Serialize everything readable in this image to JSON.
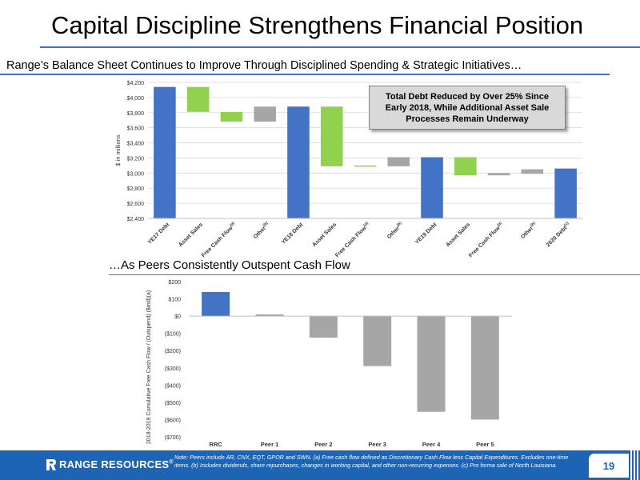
{
  "header": {
    "title": "Capital Discipline Strengthens Financial Position",
    "subtitle": "Range’s Balance Sheet Continues to Improve Through Disciplined Spending & Strategic Initiatives…",
    "subtitle2": "…As Peers Consistently Outspent Cash Flow"
  },
  "colors": {
    "accent": "#4472c4",
    "green": "#92d050",
    "gray": "#a6a6a6",
    "footer": "#1e64b4"
  },
  "callout": {
    "text": "Total Debt Reduced by Over 25% Since Early 2018, While Additional Asset Sale Processes Remain Underway"
  },
  "chart_data": [
    {
      "type": "bar",
      "subtype": "waterfall",
      "ylabel": "$ in millions",
      "ylim": [
        2400,
        4200
      ],
      "yticks": [
        2400,
        2600,
        2800,
        3000,
        3200,
        3400,
        3600,
        3800,
        4000,
        4200
      ],
      "ytick_labels": [
        "$2,400",
        "$2,600",
        "$2,800",
        "$3,000",
        "$3,200",
        "$3,400",
        "$3,600",
        "$3,800",
        "$4,000",
        "$4,200"
      ],
      "grid": true,
      "bars": [
        {
          "label": "YE17 Debt",
          "kind": "total",
          "start": 2400,
          "end": 4140
        },
        {
          "label": "Asset Sales",
          "kind": "green",
          "start": 4140,
          "end": 3810
        },
        {
          "label": "Free Cash Flow(a)",
          "kind": "green",
          "start": 3810,
          "end": 3680
        },
        {
          "label": "Other(b)",
          "kind": "gray",
          "start": 3680,
          "end": 3880
        },
        {
          "label": "YE18 Debt",
          "kind": "total",
          "start": 2400,
          "end": 3880
        },
        {
          "label": "Asset Sales",
          "kind": "green",
          "start": 3880,
          "end": 3090
        },
        {
          "label": "Free Cash Flow(a)",
          "kind": "green",
          "start": 3090,
          "end": 3100
        },
        {
          "label": "Other(b)",
          "kind": "gray",
          "start": 3090,
          "end": 3210
        },
        {
          "label": "YE19 Debt",
          "kind": "total",
          "start": 2400,
          "end": 3210
        },
        {
          "label": "Asset Sales",
          "kind": "green",
          "start": 3210,
          "end": 2970
        },
        {
          "label": "Free Cash Flow(a)",
          "kind": "gray",
          "start": 2970,
          "end": 3000
        },
        {
          "label": "Other(b)",
          "kind": "gray",
          "start": 2990,
          "end": 3050
        },
        {
          "label": "2020 Debt(c)",
          "kind": "total",
          "start": 2400,
          "end": 3060
        }
      ]
    },
    {
      "type": "bar",
      "ylabel": "2018-2019 Cumulative Free Cash Flow / (Outspend) ($mill)(a)",
      "ylim": [
        -700,
        200
      ],
      "yticks": [
        -700,
        -600,
        -500,
        -400,
        -300,
        -200,
        -100,
        0,
        100,
        200
      ],
      "ytick_labels": [
        "($700)",
        "($600)",
        "($500)",
        "($400)",
        "($300)",
        "($200)",
        "($100)",
        "$0",
        "$100",
        "$200"
      ],
      "grid": false,
      "categories": [
        "RRC",
        "Peer 1",
        "Peer 2",
        "Peer 3",
        "Peer 4",
        "Peer 5"
      ],
      "values": [
        140,
        10,
        -125,
        -290,
        -555,
        -600
      ],
      "bar_kinds": [
        "blue",
        "gray",
        "gray",
        "gray",
        "gray",
        "gray"
      ]
    }
  ],
  "footer": {
    "logo": "RANGE RESOURCES",
    "logo_mark": "®",
    "note": "Note: Peers include AR, CNX, EQT, GPOR and SWN. (a) Free cash flow defined as Discretionary Cash Flow less Capital Expenditures. Excludes one-time items. (b) Includes dividends, share repurchases, changes in working capital, and other non-recurring expenses. (c) Pro forma sale of North Louisiana.",
    "page": "19"
  }
}
